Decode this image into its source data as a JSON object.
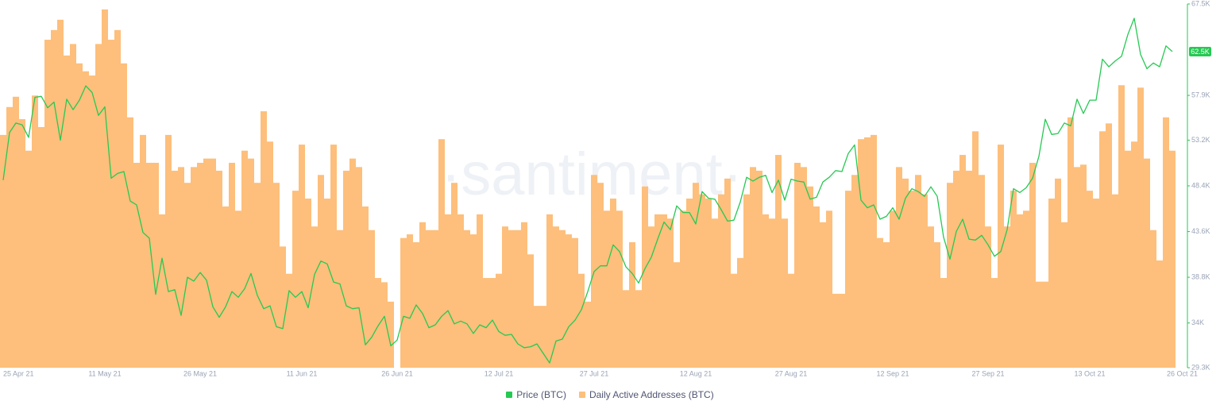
{
  "chart_data": {
    "type": "bar-line",
    "watermark": "·santiment·",
    "categories": [
      "25 Apr 21",
      null,
      null,
      null,
      null,
      null,
      null,
      null,
      null,
      null,
      null,
      null,
      null,
      null,
      null,
      null,
      "11 May 21",
      null,
      null,
      null,
      null,
      null,
      null,
      null,
      null,
      null,
      null,
      null,
      null,
      null,
      null,
      "26 May 21",
      null,
      null,
      null,
      null,
      null,
      null,
      null,
      null,
      null,
      null,
      null,
      null,
      null,
      null,
      null,
      "11 Jun 21",
      null,
      null,
      null,
      null,
      null,
      null,
      null,
      null,
      null,
      null,
      null,
      null,
      null,
      null,
      "26 Jun 21",
      null,
      null,
      null,
      null,
      null,
      null,
      null,
      null,
      null,
      null,
      null,
      null,
      null,
      null,
      null,
      "12 Jul 21",
      null,
      null,
      null,
      null,
      null,
      null,
      null,
      null,
      null,
      null,
      null,
      null,
      null,
      null,
      "27 Jul 21",
      null,
      null,
      null,
      null,
      null,
      null,
      null,
      null,
      null,
      null,
      null,
      null,
      null,
      null,
      null,
      "12 Aug 21",
      null,
      null,
      null,
      null,
      null,
      null,
      null,
      null,
      null,
      null,
      null,
      null,
      null,
      null,
      "27 Aug 21",
      null,
      null,
      null,
      null,
      null,
      null,
      null,
      null,
      null,
      null,
      null,
      null,
      null,
      null,
      null,
      "12 Sep 21",
      null,
      null,
      null,
      null,
      null,
      null,
      null,
      null,
      null,
      null,
      null,
      null,
      null,
      null,
      "27 Sep 21",
      null,
      null,
      null,
      null,
      null,
      null,
      null,
      null,
      null,
      null,
      null,
      null,
      null,
      null,
      null,
      "13 Oct 21",
      null,
      null,
      null,
      null,
      null,
      null,
      null,
      null,
      null,
      null,
      null,
      null,
      "26 Oct 21"
    ],
    "series": [
      {
        "name": "Price (BTC)",
        "type": "line",
        "axis": "y",
        "color": "#26c953",
        "values": [
          49000,
          54000,
          55000,
          54800,
          53500,
          57700,
          57800,
          56600,
          57200,
          53200,
          57500,
          56400,
          57400,
          58900,
          58200,
          55800,
          56700,
          49200,
          49700,
          49900,
          46800,
          46400,
          43500,
          42900,
          37000,
          40800,
          37300,
          37500,
          34800,
          38800,
          38400,
          39300,
          38500,
          35700,
          34600,
          35700,
          37300,
          36700,
          37600,
          39200,
          36900,
          35500,
          35800,
          33600,
          33400,
          37400,
          36700,
          37300,
          35600,
          39100,
          40500,
          40200,
          38300,
          38100,
          35800,
          35500,
          35600,
          31700,
          32500,
          33700,
          34700,
          31600,
          32200,
          34700,
          34500,
          35900,
          35000,
          33500,
          33800,
          34700,
          35300,
          33900,
          34200,
          33900,
          32900,
          33800,
          33500,
          34300,
          33100,
          32700,
          32800,
          31800,
          31400,
          31500,
          31800,
          30800,
          29800,
          32100,
          32300,
          33600,
          34300,
          35400,
          37300,
          39400,
          40000,
          40000,
          42200,
          41500,
          39900,
          39200,
          38200,
          39700,
          40900,
          42800,
          44600,
          43800,
          46300,
          45600,
          45600,
          44400,
          47800,
          47100,
          47000,
          45900,
          44700,
          44800,
          46700,
          49300,
          48900,
          49300,
          49500,
          47700,
          49000,
          46900,
          49100,
          48900,
          48800,
          47000,
          47200,
          48800,
          49300,
          50000,
          49900,
          51800,
          52700,
          46900,
          46100,
          46400,
          44900,
          45200,
          46100,
          44900,
          47100,
          48100,
          47800,
          47300,
          48300,
          47300,
          43000,
          40700,
          43600,
          44900,
          42800,
          42700,
          43200,
          42200,
          41000,
          41500,
          43800,
          48100,
          47700,
          48200,
          49200,
          51500,
          55400,
          53800,
          53900,
          55000,
          54700,
          57500,
          56000,
          57400,
          57400,
          61700,
          60900,
          61500,
          62000,
          64300,
          66000,
          62200,
          60700,
          61300,
          60900,
          63100,
          62500
        ]
      },
      {
        "name": "Daily Active Addresses (BTC)",
        "type": "bar",
        "axis": "y2",
        "color": "#fdbf7b",
        "values": [
          984000,
          1030000,
          1047000,
          1010000,
          958000,
          1049000,
          997000,
          1141000,
          1157000,
          1174000,
          1115000,
          1134000,
          1102000,
          1089000,
          1082000,
          1134000,
          1191000,
          1141000,
          1157000,
          1102000,
          1013000,
          938000,
          984000,
          938000,
          938000,
          853000,
          984000,
          925000,
          931000,
          905000,
          931000,
          938000,
          945000,
          945000,
          925000,
          866000,
          938000,
          859000,
          958000,
          945000,
          905000,
          1023000,
          973000,
          905000,
          800000,
          755000,
          892000,
          968000,
          879000,
          833000,
          918000,
          879000,
          968000,
          827000,
          925000,
          945000,
          931000,
          866000,
          827000,
          748000,
          741000,
          709000,
          600000,
          814000,
          820000,
          807000,
          840000,
          827000,
          827000,
          977000,
          853000,
          905000,
          853000,
          827000,
          820000,
          853000,
          748000,
          748000,
          755000,
          833000,
          827000,
          827000,
          840000,
          787000,
          702000,
          702000,
          853000,
          833000,
          827000,
          820000,
          814000,
          755000,
          709000,
          918000,
          905000,
          859000,
          879000,
          859000,
          728000,
          807000,
          728000,
          899000,
          833000,
          853000,
          853000,
          846000,
          774000,
          859000,
          879000,
          905000,
          886000,
          879000,
          846000,
          886000,
          912000,
          755000,
          781000,
          886000,
          931000,
          925000,
          853000,
          846000,
          951000,
          846000,
          755000,
          938000,
          931000,
          899000,
          866000,
          840000,
          859000,
          722000,
          722000,
          892000,
          918000,
          977000,
          980000,
          984000,
          814000,
          807000,
          859000,
          931000,
          912000,
          892000,
          918000,
          886000,
          833000,
          807000,
          748000,
          905000,
          925000,
          951000,
          925000,
          990000,
          918000,
          833000,
          748000,
          968000,
          833000,
          892000,
          853000,
          859000,
          938000,
          742000,
          742000,
          879000,
          912000,
          840000,
          1013000,
          931000,
          935000,
          892000,
          879000,
          990000,
          1003000,
          886000,
          1066000,
          958000,
          973000,
          1062000,
          945000,
          827000,
          777000,
          1013000,
          958000
        ]
      }
    ],
    "ylim": [
      29300,
      67500
    ],
    "yticks": [
      {
        "value": 29300,
        "label": "29.3K"
      },
      {
        "value": 34000,
        "label": "34K"
      },
      {
        "value": 38800,
        "label": "38.8K"
      },
      {
        "value": 43600,
        "label": "43.6K"
      },
      {
        "value": 48400,
        "label": "48.4K"
      },
      {
        "value": 53200,
        "label": "53.2K"
      },
      {
        "value": 57900,
        "label": "57.9K"
      },
      {
        "value": 67500,
        "label": "67.5K"
      }
    ],
    "y2lim": [
      600000,
      1200000
    ],
    "annotations": [
      {
        "value": 62500,
        "label": "62.5K"
      }
    ],
    "grid": false
  }
}
